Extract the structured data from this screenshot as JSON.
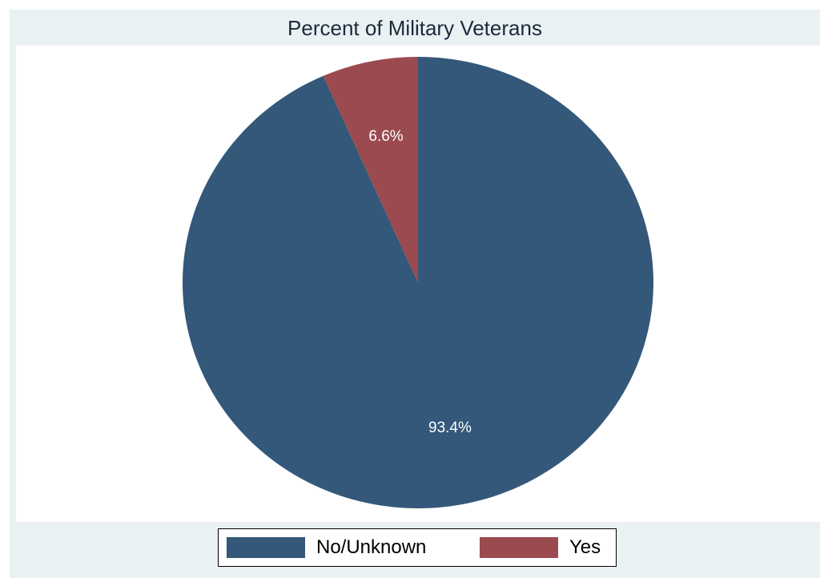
{
  "chart_data": {
    "type": "pie",
    "title": "Percent of Military Veterans",
    "slices": [
      {
        "name": "No/Unknown",
        "value": 93.4,
        "label": "93.4%",
        "color": "#335879"
      },
      {
        "name": "Yes",
        "value": 6.6,
        "label": "6.6%",
        "color": "#9b4a4f"
      }
    ],
    "legend_position": "bottom"
  }
}
